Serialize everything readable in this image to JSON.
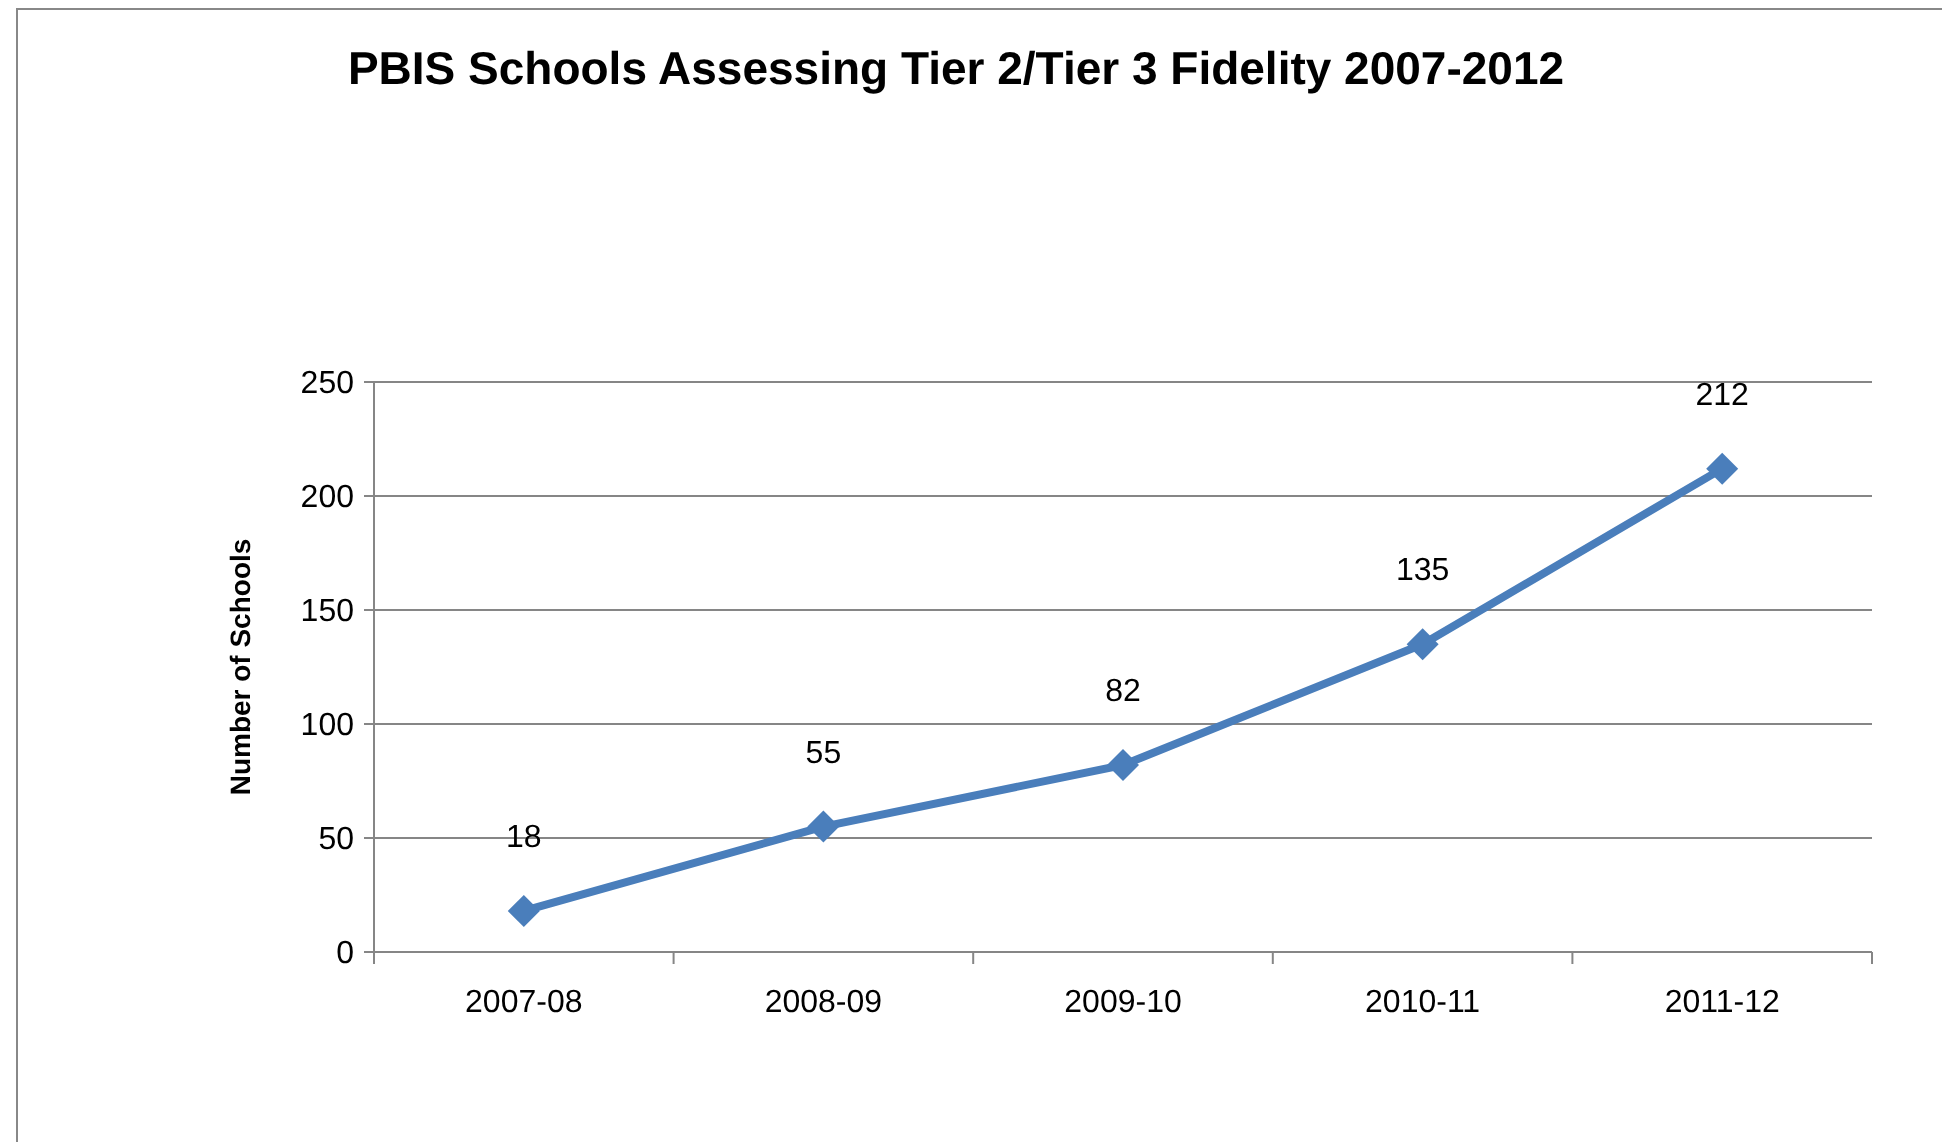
{
  "chart_data": {
    "type": "line",
    "title": "PBIS Schools Assessing Tier 2/Tier 3 Fidelity 2007-2012",
    "ylabel": "Number of Schools",
    "categories": [
      "2007-08",
      "2008-09",
      "2009-10",
      "2010-11",
      "2011-12"
    ],
    "series": [
      {
        "color": "#4a7ebb",
        "values": [
          18,
          55,
          82,
          135,
          212
        ]
      }
    ],
    "ylim": [
      0,
      250
    ],
    "yticks": [
      0,
      50,
      100,
      150,
      200,
      250
    ],
    "grid": "y",
    "data_labels": true,
    "marker": "diamond",
    "line_style": "solid"
  }
}
